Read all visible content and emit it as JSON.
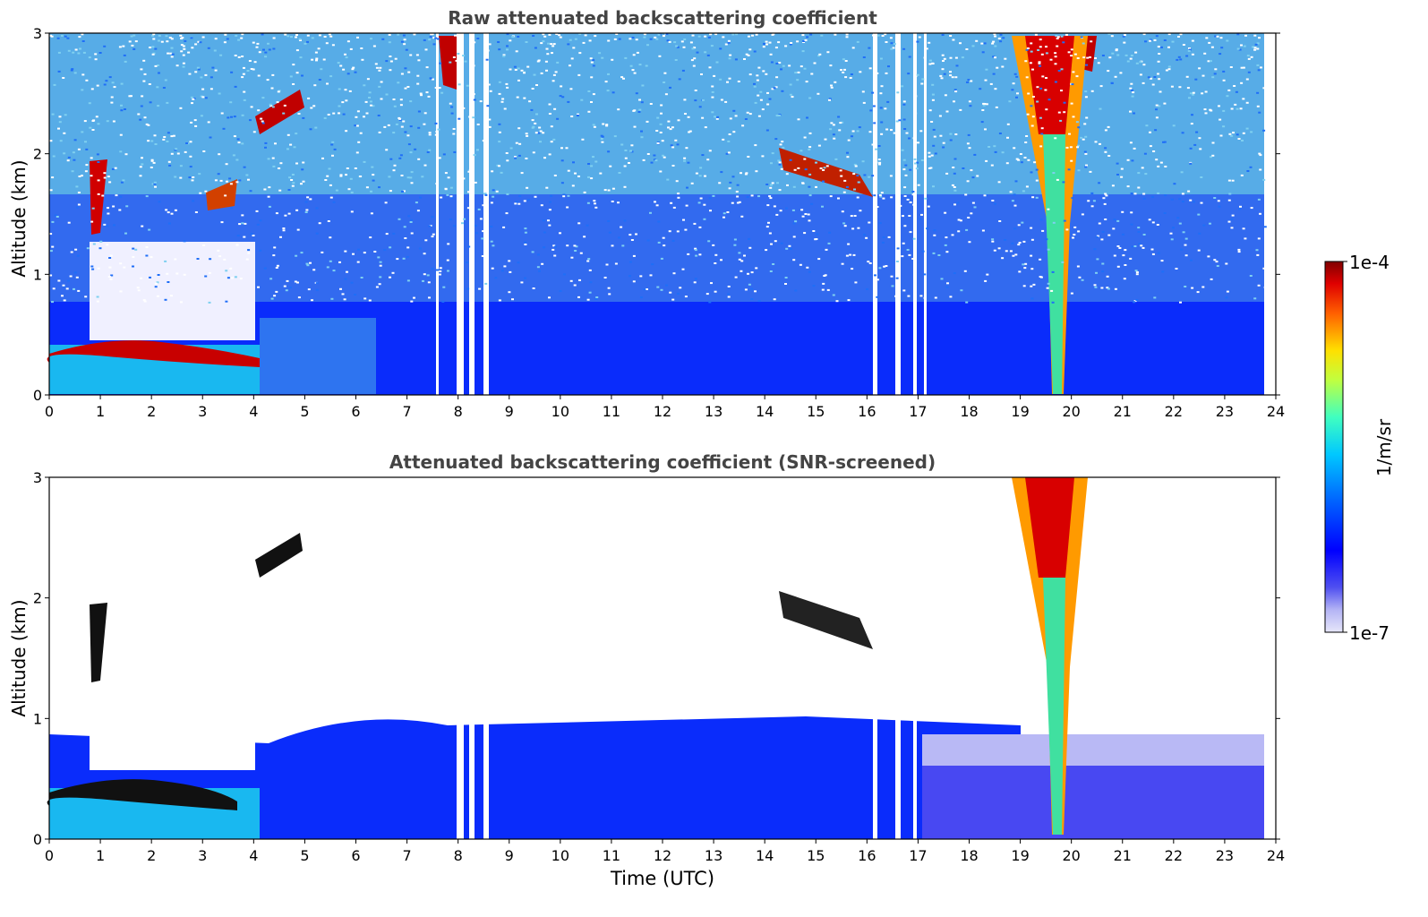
{
  "chart_data": [
    {
      "type": "heatmap",
      "title": "Raw attenuated backscattering coefficient",
      "xlabel": "",
      "ylabel": "Altitude (km)",
      "xlim": [
        0,
        24
      ],
      "ylim": [
        0,
        3
      ],
      "xticks": [
        "0",
        "1",
        "2",
        "3",
        "4",
        "5",
        "6",
        "7",
        "8",
        "9",
        "10",
        "11",
        "12",
        "13",
        "14",
        "15",
        "16",
        "17",
        "18",
        "19",
        "20",
        "21",
        "22",
        "23",
        "24"
      ],
      "yticks": [
        "0",
        "1",
        "2",
        "3"
      ],
      "data_gaps_utc": [
        7.6,
        8.0,
        8.2,
        8.35,
        8.55,
        15.55,
        16.5,
        16.85,
        17.05
      ],
      "layers": [
        {
          "feature": "boundary-layer aerosol top",
          "x_start": 0,
          "x_end": 4.2,
          "altitude_km": 0.35,
          "level": "high"
        },
        {
          "feature": "mid-level cloud",
          "x_start": 0.8,
          "x_end": 4.8,
          "altitude_km": 1.9,
          "level": "high"
        },
        {
          "feature": "cloud",
          "x_start": 14.5,
          "x_end": 16.2,
          "altitude_km": 1.8,
          "level": "high"
        },
        {
          "feature": "precipitation shaft",
          "x_start": 19.0,
          "x_end": 20.4,
          "altitude_km": 3.0,
          "level": "high"
        }
      ]
    },
    {
      "type": "heatmap",
      "title": "Attenuated backscattering coefficient (SNR-screened)",
      "xlabel": "Time (UTC)",
      "ylabel": "Altitude (km)",
      "xlim": [
        0,
        24
      ],
      "ylim": [
        0,
        3
      ],
      "xticks": [
        "0",
        "1",
        "2",
        "3",
        "4",
        "5",
        "6",
        "7",
        "8",
        "9",
        "10",
        "11",
        "12",
        "13",
        "14",
        "15",
        "16",
        "17",
        "18",
        "19",
        "20",
        "21",
        "22",
        "23",
        "24"
      ],
      "yticks": [
        "0",
        "1",
        "2",
        "3"
      ]
    }
  ],
  "colorbar": {
    "label": "1/m/sr",
    "min_label": "1e-7",
    "max_label": "1e-4",
    "colors": [
      "#e6e6fa",
      "#c8c8f5",
      "#9696f0",
      "#5050f0",
      "#0000ff",
      "#0040ff",
      "#0080ff",
      "#00b4ff",
      "#00e0f0",
      "#40ffc0",
      "#a0ff60",
      "#f0f000",
      "#ffb000",
      "#ff6000",
      "#e00000",
      "#800000"
    ]
  }
}
